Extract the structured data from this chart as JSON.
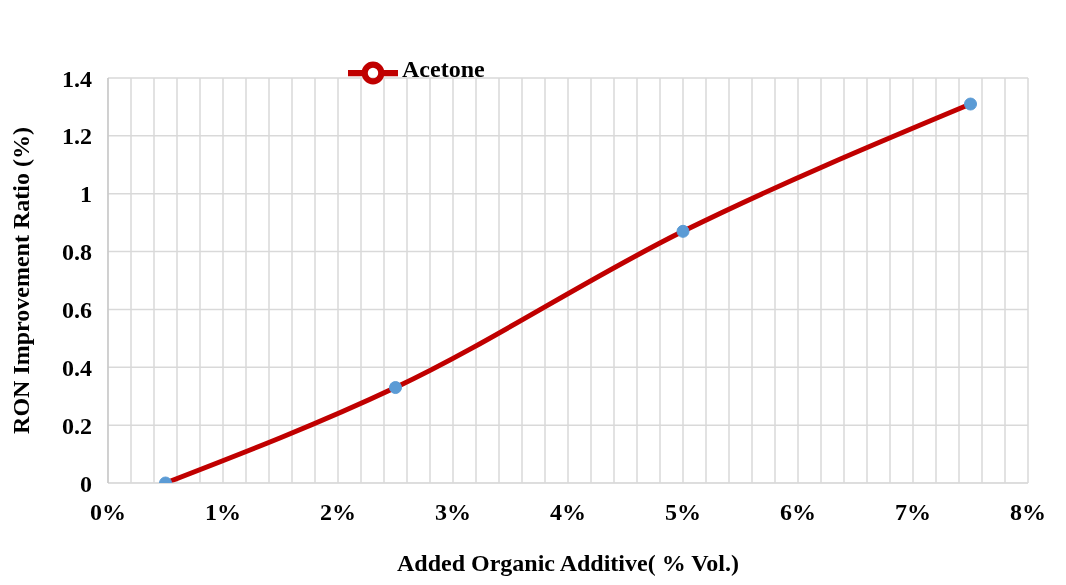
{
  "chart_data": {
    "type": "line",
    "xlabel": "Added Organic Additive( % Vol.)",
    "ylabel": "RON Improvement Ratio  (%)",
    "x": [
      0.5,
      2.5,
      5,
      7.5
    ],
    "series": [
      {
        "name": "Acetone",
        "color": "#c00000",
        "values": [
          0,
          0.33,
          0.87,
          1.31
        ]
      }
    ],
    "xlim": [
      0,
      8
    ],
    "xticks": [
      {
        "value": 0,
        "label": "0%"
      },
      {
        "value": 0.2,
        "label": null
      },
      {
        "value": 0.4,
        "label": null
      },
      {
        "value": 0.6,
        "label": null
      },
      {
        "value": 0.8,
        "label": null
      },
      {
        "value": 1,
        "label": "1%"
      },
      {
        "value": 1.2,
        "label": null
      },
      {
        "value": 1.4,
        "label": null
      },
      {
        "value": 1.6,
        "label": null
      },
      {
        "value": 1.8,
        "label": null
      },
      {
        "value": 2,
        "label": "2%"
      },
      {
        "value": 2.2,
        "label": null
      },
      {
        "value": 2.4,
        "label": null
      },
      {
        "value": 2.6,
        "label": null
      },
      {
        "value": 2.8,
        "label": null
      },
      {
        "value": 3,
        "label": "3%"
      },
      {
        "value": 3.2,
        "label": null
      },
      {
        "value": 3.4,
        "label": null
      },
      {
        "value": 3.6,
        "label": null
      },
      {
        "value": 3.8,
        "label": null
      },
      {
        "value": 4,
        "label": "4%"
      },
      {
        "value": 4.2,
        "label": null
      },
      {
        "value": 4.4,
        "label": null
      },
      {
        "value": 4.6,
        "label": null
      },
      {
        "value": 4.8,
        "label": null
      },
      {
        "value": 5,
        "label": "5%"
      },
      {
        "value": 5.2,
        "label": null
      },
      {
        "value": 5.4,
        "label": null
      },
      {
        "value": 5.6,
        "label": null
      },
      {
        "value": 5.8,
        "label": null
      },
      {
        "value": 6,
        "label": "6%"
      },
      {
        "value": 6.2,
        "label": null
      },
      {
        "value": 6.4,
        "label": null
      },
      {
        "value": 6.6,
        "label": null
      },
      {
        "value": 6.8,
        "label": null
      },
      {
        "value": 7,
        "label": "7%"
      },
      {
        "value": 7.2,
        "label": null
      },
      {
        "value": 7.4,
        "label": null
      },
      {
        "value": 7.6,
        "label": null
      },
      {
        "value": 7.8,
        "label": null
      },
      {
        "value": 8,
        "label": "8%"
      }
    ],
    "ylim": [
      0,
      1.4
    ],
    "yticks": [
      0,
      0.2,
      0.4,
      0.6,
      0.8,
      1,
      1.2,
      1.4
    ],
    "grid": true,
    "legend": "top left",
    "marker": "circle",
    "line_style": "solid"
  }
}
